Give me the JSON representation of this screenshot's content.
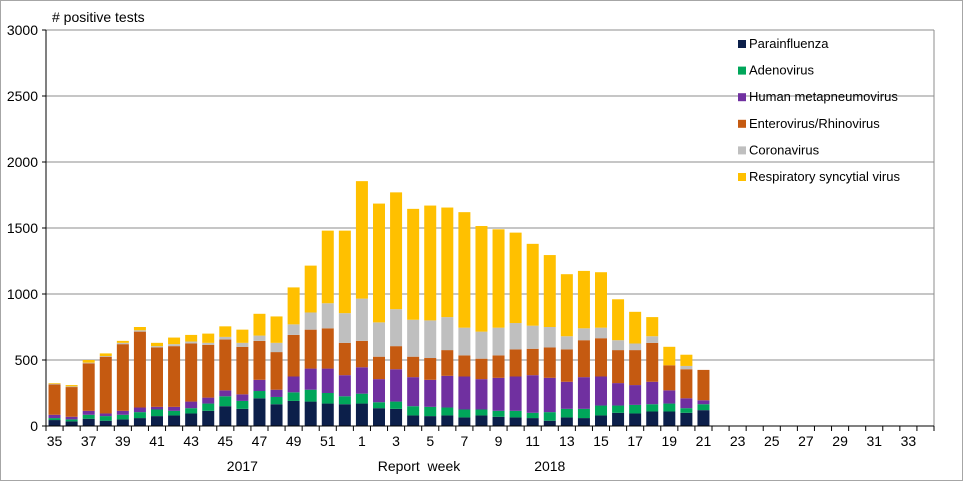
{
  "chart_data": {
    "type": "bar",
    "stacked": true,
    "title": "# positive tests",
    "xlabel": "Report  week",
    "ylabel": "",
    "ylim": [
      0,
      3000
    ],
    "y_ticks": [
      "0",
      "500",
      "1000",
      "1500",
      "2000",
      "2500",
      "3000"
    ],
    "grid": true,
    "legend_position": "top-right",
    "year_labels": [
      {
        "label": "2017",
        "at_week": "46"
      },
      {
        "label": "2018",
        "at_week": "12"
      }
    ],
    "x_tick_labels": [
      "35",
      "37",
      "39",
      "41",
      "43",
      "45",
      "47",
      "49",
      "51",
      "1",
      "3",
      "5",
      "7",
      "9",
      "11",
      "13",
      "15",
      "17",
      "19",
      "21",
      "23",
      "25",
      "27",
      "29",
      "31",
      "33"
    ],
    "categories": [
      "35",
      "36",
      "37",
      "38",
      "39",
      "40",
      "41",
      "42",
      "43",
      "44",
      "45",
      "46",
      "47",
      "48",
      "49",
      "50",
      "51",
      "52",
      "1",
      "2",
      "3",
      "4",
      "5",
      "6",
      "7",
      "8",
      "9",
      "10",
      "11",
      "12",
      "13",
      "14",
      "15",
      "16",
      "17",
      "18",
      "19",
      "20",
      "21",
      "22",
      "23",
      "24",
      "25",
      "26",
      "27",
      "28",
      "29",
      "30",
      "31",
      "32",
      "33",
      "34"
    ],
    "series": [
      {
        "name": "Parainfluenza",
        "color": "#0c1f4a",
        "values": [
          45,
          35,
          55,
          40,
          50,
          60,
          75,
          80,
          95,
          115,
          150,
          130,
          210,
          165,
          190,
          185,
          170,
          165,
          170,
          135,
          130,
          80,
          75,
          80,
          65,
          80,
          70,
          65,
          60,
          40,
          65,
          60,
          80,
          100,
          95,
          110,
          110,
          100,
          120,
          0,
          0,
          0,
          0,
          0,
          0,
          0,
          0,
          0,
          0,
          0,
          0,
          0
        ]
      },
      {
        "name": "Adenovirus",
        "color": "#00a65a",
        "values": [
          15,
          15,
          30,
          35,
          35,
          45,
          50,
          35,
          40,
          55,
          75,
          60,
          55,
          55,
          65,
          90,
          80,
          60,
          75,
          45,
          55,
          70,
          70,
          60,
          60,
          45,
          45,
          50,
          40,
          65,
          65,
          70,
          75,
          55,
          65,
          55,
          60,
          35,
          45,
          0,
          0,
          0,
          0,
          0,
          0,
          0,
          0,
          0,
          0,
          0,
          0,
          0
        ]
      },
      {
        "name": "Human metapneumovirus",
        "color": "#7030a0",
        "values": [
          25,
          20,
          30,
          20,
          30,
          35,
          20,
          30,
          50,
          45,
          45,
          50,
          85,
          55,
          120,
          160,
          185,
          160,
          200,
          175,
          245,
          220,
          205,
          240,
          250,
          230,
          250,
          260,
          285,
          260,
          205,
          240,
          220,
          170,
          150,
          170,
          100,
          75,
          30,
          0,
          0,
          0,
          0,
          0,
          0,
          0,
          0,
          0,
          0,
          0,
          0,
          0
        ]
      },
      {
        "name": "Enterovirus/Rhinovirus",
        "color": "#c55a11",
        "values": [
          230,
          225,
          360,
          430,
          505,
          575,
          450,
          460,
          440,
          400,
          385,
          360,
          295,
          285,
          315,
          295,
          305,
          245,
          200,
          170,
          175,
          155,
          165,
          195,
          160,
          155,
          170,
          205,
          200,
          230,
          245,
          280,
          290,
          250,
          265,
          295,
          190,
          220,
          230,
          0,
          0,
          0,
          0,
          0,
          0,
          0,
          0,
          0,
          0,
          0,
          0,
          0
        ]
      },
      {
        "name": "Coronavirus",
        "color": "#bfbfbf",
        "values": [
          5,
          5,
          5,
          5,
          10,
          10,
          10,
          15,
          15,
          15,
          20,
          30,
          40,
          70,
          80,
          130,
          190,
          225,
          320,
          260,
          280,
          280,
          285,
          250,
          210,
          205,
          210,
          200,
          175,
          155,
          100,
          90,
          80,
          75,
          50,
          50,
          0,
          25,
          0,
          0,
          0,
          0,
          0,
          0,
          0,
          0,
          0,
          0,
          0,
          0,
          0,
          0
        ]
      },
      {
        "name": "Respiratory syncytial virus",
        "color": "#ffc000",
        "values": [
          5,
          10,
          20,
          20,
          15,
          25,
          25,
          50,
          50,
          70,
          80,
          100,
          165,
          200,
          280,
          355,
          550,
          625,
          890,
          900,
          885,
          840,
          870,
          830,
          875,
          800,
          745,
          685,
          620,
          545,
          470,
          435,
          420,
          310,
          240,
          145,
          140,
          85,
          0,
          0,
          0,
          0,
          0,
          0,
          0,
          0,
          0,
          0,
          0,
          0,
          0,
          0
        ]
      }
    ]
  }
}
